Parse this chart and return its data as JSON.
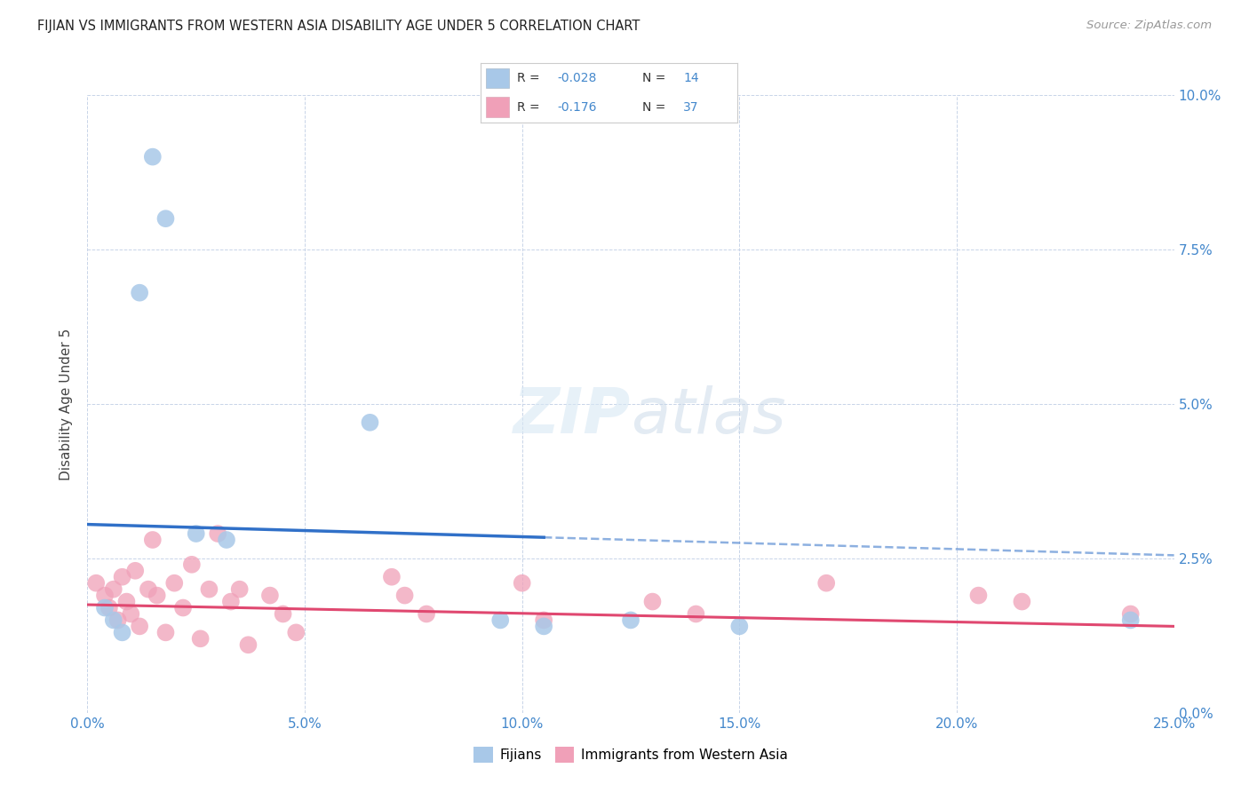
{
  "title": "FIJIAN VS IMMIGRANTS FROM WESTERN ASIA DISABILITY AGE UNDER 5 CORRELATION CHART",
  "source": "Source: ZipAtlas.com",
  "ylabel": "Disability Age Under 5",
  "xlabel_vals": [
    0.0,
    5.0,
    10.0,
    15.0,
    20.0,
    25.0
  ],
  "ylabel_vals": [
    0.0,
    2.5,
    5.0,
    7.5,
    10.0
  ],
  "xlim": [
    0.0,
    25.0
  ],
  "ylim": [
    0.0,
    10.0
  ],
  "fijian_color": "#a8c8e8",
  "immigrant_color": "#f0a0b8",
  "fijian_line_color": "#3070c8",
  "immigrant_line_color": "#e04870",
  "background_color": "#ffffff",
  "grid_color": "#c8d4e8",
  "fijian_points": [
    [
      1.5,
      9.0
    ],
    [
      1.8,
      8.0
    ],
    [
      1.2,
      6.8
    ],
    [
      6.5,
      4.7
    ],
    [
      2.5,
      2.9
    ],
    [
      3.2,
      2.8
    ],
    [
      0.4,
      1.7
    ],
    [
      0.6,
      1.5
    ],
    [
      0.8,
      1.3
    ],
    [
      9.5,
      1.5
    ],
    [
      10.5,
      1.4
    ],
    [
      12.5,
      1.5
    ],
    [
      15.0,
      1.4
    ],
    [
      24.0,
      1.5
    ]
  ],
  "immigrant_points": [
    [
      0.2,
      2.1
    ],
    [
      0.4,
      1.9
    ],
    [
      0.5,
      1.7
    ],
    [
      0.6,
      2.0
    ],
    [
      0.7,
      1.5
    ],
    [
      0.8,
      2.2
    ],
    [
      0.9,
      1.8
    ],
    [
      1.0,
      1.6
    ],
    [
      1.1,
      2.3
    ],
    [
      1.2,
      1.4
    ],
    [
      1.4,
      2.0
    ],
    [
      1.5,
      2.8
    ],
    [
      1.6,
      1.9
    ],
    [
      1.8,
      1.3
    ],
    [
      2.0,
      2.1
    ],
    [
      2.2,
      1.7
    ],
    [
      2.4,
      2.4
    ],
    [
      2.6,
      1.2
    ],
    [
      2.8,
      2.0
    ],
    [
      3.0,
      2.9
    ],
    [
      3.3,
      1.8
    ],
    [
      3.5,
      2.0
    ],
    [
      3.7,
      1.1
    ],
    [
      4.2,
      1.9
    ],
    [
      4.5,
      1.6
    ],
    [
      4.8,
      1.3
    ],
    [
      7.0,
      2.2
    ],
    [
      7.3,
      1.9
    ],
    [
      7.8,
      1.6
    ],
    [
      10.0,
      2.1
    ],
    [
      10.5,
      1.5
    ],
    [
      13.0,
      1.8
    ],
    [
      14.0,
      1.6
    ],
    [
      17.0,
      2.1
    ],
    [
      20.5,
      1.9
    ],
    [
      21.5,
      1.8
    ],
    [
      24.0,
      1.6
    ]
  ],
  "legend_blue_r": "-0.028",
  "legend_blue_n": "14",
  "legend_pink_r": "-0.176",
  "legend_pink_n": "37"
}
